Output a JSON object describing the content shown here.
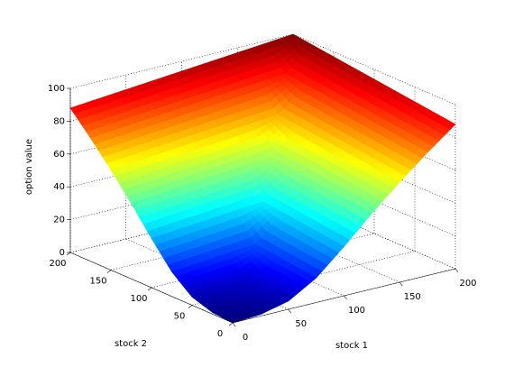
{
  "chart_data": {
    "type": "surface",
    "xlabel": "stock 1",
    "ylabel": "stock 2",
    "zlabel": "option value",
    "x": [
      0,
      25,
      50,
      75,
      100,
      125,
      150,
      175,
      200
    ],
    "y": [
      0,
      25,
      50,
      75,
      100,
      125,
      150,
      175,
      200
    ],
    "z": [
      [
        0,
        1,
        5,
        15,
        30,
        46,
        61,
        75,
        88
      ],
      [
        1,
        2.5,
        6.5,
        16.5,
        31.5,
        47.5,
        62.5,
        76.5,
        89.5
      ],
      [
        5,
        6.5,
        8,
        18,
        33,
        49,
        64,
        78,
        91
      ],
      [
        15,
        16.5,
        18,
        19.5,
        34.5,
        50.5,
        65.5,
        79.5,
        92.5
      ],
      [
        30,
        31.5,
        33,
        34.5,
        36,
        52,
        67,
        81,
        94
      ],
      [
        46,
        47.5,
        49,
        50.5,
        52,
        53.5,
        68.5,
        82.5,
        95.5
      ],
      [
        61,
        62.5,
        64,
        65.5,
        67,
        68.5,
        70,
        84,
        97
      ],
      [
        75,
        76.5,
        78,
        79.5,
        81,
        82.5,
        84,
        85.5,
        98.5
      ],
      [
        88,
        89.5,
        91,
        92.5,
        94,
        95.5,
        97,
        98.5,
        100
      ]
    ],
    "xlim": [
      0,
      200
    ],
    "ylim": [
      0,
      200
    ],
    "zlim": [
      0,
      100
    ],
    "xticks": [
      0,
      50,
      100,
      150,
      200
    ],
    "yticks": [
      0,
      50,
      100,
      150,
      200
    ],
    "zticks": [
      0,
      20,
      40,
      60,
      80,
      100
    ],
    "grid": true,
    "colormap": "jet"
  }
}
